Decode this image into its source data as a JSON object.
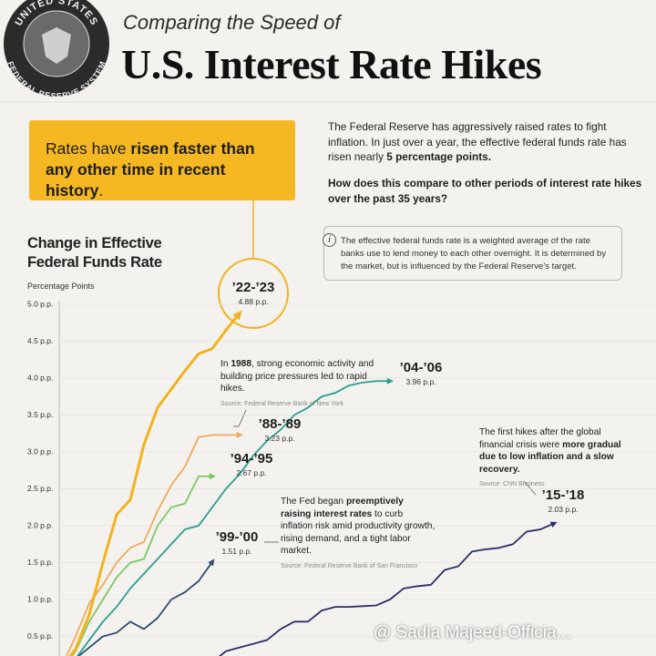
{
  "header": {
    "seal_top": "UNITED STATES",
    "seal_bottom": "FEDERAL RESERVE SYSTEM",
    "kicker": "Comparing the Speed of",
    "title": "U.S. Interest Rate Hikes"
  },
  "callout": {
    "parts": [
      {
        "text": "Rates have "
      },
      {
        "text": "risen faster than any other time in recent history",
        "bold": true
      },
      {
        "text": "."
      }
    ]
  },
  "intro": {
    "paragraph": [
      {
        "text": "The Federal Reserve has aggressively raised rates to fight inflation. In just over a year, the effective federal funds rate has risen nearly "
      },
      {
        "text": "5 percentage points.",
        "bold": true
      }
    ],
    "question": "How does this compare to other periods of interest rate hikes over the past 35 years?"
  },
  "note": {
    "icon": "i",
    "text": "The effective federal funds rate is a weighted average of the rate banks use to lend money to each other overnight. It is determined by the market, but is influenced by the Federal Reserve's target."
  },
  "chart_data": {
    "type": "line",
    "title": "Change in Effective Federal Funds Rate",
    "y_label": "Percentage Points",
    "ylim": [
      0,
      5.0
    ],
    "yticks": [
      {
        "value": 0.5,
        "label": "0.5 p.p."
      },
      {
        "value": 1.0,
        "label": "1.0 p.p."
      },
      {
        "value": 1.5,
        "label": "1.5 p.p."
      },
      {
        "value": 2.0,
        "label": "2.0 p.p."
      },
      {
        "value": 2.5,
        "label": "2.5 p.p."
      },
      {
        "value": 3.0,
        "label": "3.0 p.p."
      },
      {
        "value": 3.5,
        "label": "3.5 p.p."
      },
      {
        "value": 4.0,
        "label": "4.0 p.p."
      },
      {
        "value": 4.5,
        "label": "4.5 p.p."
      },
      {
        "value": 5.0,
        "label": "5.0 p.p."
      }
    ],
    "grid": true,
    "series": [
      {
        "name": "’15-’18",
        "color": "#2b2d6b",
        "values": [
          0.0,
          0.05,
          0.1,
          0.1,
          0.1,
          0.1,
          0.1,
          0.1,
          0.1,
          0.1,
          0.1,
          0.15,
          0.3,
          0.35,
          0.4,
          0.45,
          0.6,
          0.7,
          0.7,
          0.85,
          0.9,
          0.9,
          0.91,
          0.92,
          1.0,
          1.15,
          1.18,
          1.2,
          1.4,
          1.45,
          1.65,
          1.68,
          1.7,
          1.75,
          1.92,
          1.95,
          2.03
        ],
        "value_labels": [
          null,
          null,
          null,
          null,
          null,
          null,
          null,
          null,
          null,
          null,
          null,
          null,
          null,
          null,
          null,
          null,
          null,
          null,
          null,
          null,
          null,
          null,
          null,
          null,
          null,
          null,
          null,
          null,
          null,
          null,
          null,
          null,
          null,
          null,
          null,
          null,
          "2.03 p.p."
        ]
      },
      {
        "name": "’99-’00",
        "color": "#2f4b6e",
        "values": [
          0.02,
          0.2,
          0.35,
          0.5,
          0.55,
          0.7,
          0.6,
          0.75,
          1.0,
          1.1,
          1.25,
          1.51
        ],
        "value_labels": [
          null,
          null,
          null,
          null,
          null,
          null,
          null,
          null,
          null,
          null,
          null,
          "1.51 p.p."
        ]
      },
      {
        "name": "’04-’06",
        "color": "#2a9d8f",
        "values": [
          0.02,
          0.2,
          0.45,
          0.7,
          0.9,
          1.15,
          1.35,
          1.55,
          1.75,
          1.95,
          2.0,
          2.25,
          2.5,
          2.7,
          2.95,
          3.15,
          3.3,
          3.5,
          3.6,
          3.75,
          3.8,
          3.9,
          3.94,
          3.96,
          3.96
        ],
        "value_labels": [
          null,
          null,
          null,
          null,
          null,
          null,
          null,
          null,
          null,
          null,
          null,
          null,
          null,
          null,
          null,
          null,
          null,
          null,
          null,
          null,
          null,
          null,
          null,
          null,
          "3.96 p.p."
        ]
      },
      {
        "name": "’94-’95",
        "color": "#7bc862",
        "values": [
          0.05,
          0.3,
          0.7,
          1.0,
          1.3,
          1.5,
          1.55,
          2.0,
          2.25,
          2.3,
          2.67,
          2.67
        ],
        "value_labels": [
          null,
          null,
          null,
          null,
          null,
          null,
          null,
          null,
          null,
          null,
          null,
          "2.67 p.p."
        ]
      },
      {
        "name": "’88-’89",
        "color": "#f0a95a",
        "values": [
          0.1,
          0.5,
          0.95,
          1.2,
          1.5,
          1.7,
          1.78,
          2.2,
          2.55,
          2.8,
          3.2,
          3.23,
          3.23,
          3.23
        ],
        "value_labels": [
          null,
          null,
          null,
          null,
          null,
          null,
          null,
          null,
          null,
          null,
          null,
          null,
          null,
          "3.23 p.p."
        ]
      },
      {
        "name": "’22-’23",
        "color": "#f2b21c",
        "values": [
          0.08,
          0.33,
          0.8,
          1.5,
          2.15,
          2.35,
          3.1,
          3.6,
          3.85,
          4.1,
          4.33,
          4.4,
          4.65,
          4.88
        ],
        "value_labels": [
          null,
          null,
          null,
          null,
          null,
          null,
          null,
          null,
          null,
          null,
          null,
          null,
          null,
          "4.88 p.p."
        ]
      }
    ],
    "annotations": [
      {
        "parts": [
          {
            "text": "In "
          },
          {
            "text": "1988",
            "bold": true
          },
          {
            "text": ", strong economic activity and building price pressures led to rapid hikes."
          }
        ],
        "source": "Source: Federal Reserve Bank of New York"
      },
      {
        "parts": [
          {
            "text": "The Fed began "
          },
          {
            "text": "preemptively raising interest rates",
            "bold": true
          },
          {
            "text": " to curb inflation risk amid productivity growth, rising demand, and a tight labor market."
          }
        ],
        "source": "Source: Federal Reserve Bank of San Francisco"
      },
      {
        "parts": [
          {
            "text": "The first hikes after the global financial crisis were "
          },
          {
            "text": "more gradual due to low inflation and a slow recovery.",
            "bold": true
          }
        ],
        "source": "Source: CNN Business"
      }
    ]
  },
  "watermark": "@ Sadia Majeed-Officia..."
}
